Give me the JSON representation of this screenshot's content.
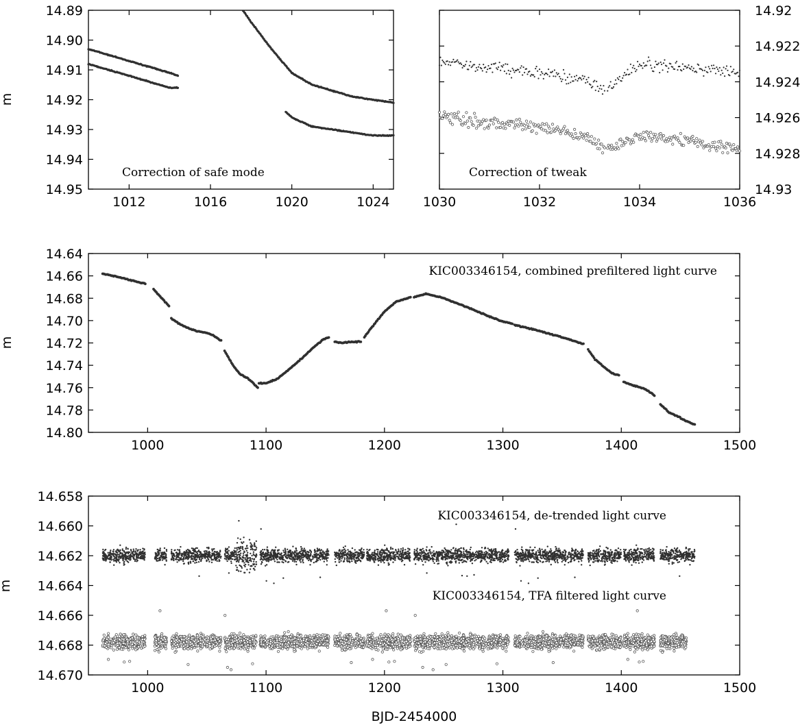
{
  "figure": {
    "xlabel": "BJD-2454000",
    "colors": {
      "points": "#303030",
      "open_points": "#555555",
      "axes": "#000000",
      "background": "#ffffff"
    }
  },
  "chart_data": [
    {
      "id": "safe-mode",
      "type": "scatter",
      "annotation": "Correction of safe mode",
      "ylabel": "m",
      "xlim": [
        1010,
        1025
      ],
      "ylim": [
        14.89,
        14.95
      ],
      "y_inverted": true,
      "xticks": [
        "1012",
        "1016",
        "1020",
        "1024"
      ],
      "xtick_values": [
        1012,
        1016,
        1020,
        1024
      ],
      "yticks": [
        "14.89",
        "14.90",
        "14.91",
        "14.92",
        "14.93",
        "14.94",
        "14.95"
      ],
      "ytick_values": [
        14.89,
        14.9,
        14.91,
        14.92,
        14.93,
        14.94,
        14.95
      ],
      "series": [
        {
          "x": [
            1010,
            1011,
            1012,
            1013,
            1014,
            1014.4
          ],
          "y": [
            14.903,
            14.905,
            14.907,
            14.909,
            14.911,
            14.912
          ]
        },
        {
          "x": [
            1010,
            1011,
            1012,
            1013,
            1014,
            1014.4
          ],
          "y": [
            14.908,
            14.91,
            14.912,
            14.914,
            14.916,
            14.916
          ]
        },
        {
          "x": [
            1017.5,
            1018,
            1019,
            1020,
            1021,
            1022,
            1023,
            1024,
            1025
          ],
          "y": [
            14.889,
            14.894,
            14.903,
            14.911,
            14.915,
            14.917,
            14.919,
            14.92,
            14.921
          ]
        },
        {
          "x": [
            1019.7,
            1020,
            1021,
            1022,
            1023,
            1024,
            1025
          ],
          "y": [
            14.924,
            14.926,
            14.929,
            14.93,
            14.931,
            14.932,
            14.932
          ]
        }
      ]
    },
    {
      "id": "tweak",
      "type": "scatter",
      "annotation": "Correction of tweak",
      "xlim": [
        1030,
        1036
      ],
      "ylim": [
        14.92,
        14.93
      ],
      "y_inverted": true,
      "y_axis_side": "right",
      "xticks": [
        "1030",
        "1032",
        "1034",
        "1036"
      ],
      "xtick_values": [
        1030,
        1032,
        1034,
        1036
      ],
      "yticks": [
        "14.92",
        "14.922",
        "14.924",
        "14.926",
        "14.928",
        "14.93"
      ],
      "ytick_values": [
        14.92,
        14.922,
        14.924,
        14.926,
        14.928,
        14.93
      ],
      "series": [
        {
          "marker": "dot",
          "x": [
            1030,
            1031,
            1032,
            1033,
            1033.3,
            1034,
            1035,
            1036
          ],
          "y": [
            14.9228,
            14.9232,
            14.9235,
            14.924,
            14.9245,
            14.923,
            14.9232,
            14.9235
          ]
        },
        {
          "marker": "open-circle",
          "x": [
            1030,
            1031,
            1032,
            1033,
            1033.3,
            1034,
            1035,
            1036
          ],
          "y": [
            14.926,
            14.9263,
            14.9265,
            14.9272,
            14.9278,
            14.927,
            14.9273,
            14.9278
          ]
        }
      ]
    },
    {
      "id": "combined",
      "type": "scatter",
      "annotation": "KIC003346154, combined prefiltered light curve",
      "ylabel": "m",
      "xlim": [
        950,
        1500
      ],
      "ylim": [
        14.64,
        14.8
      ],
      "y_inverted": true,
      "xticks": [
        "1000",
        "1100",
        "1200",
        "1300",
        "1400",
        "1500"
      ],
      "xtick_values": [
        1000,
        1100,
        1200,
        1300,
        1400,
        1500
      ],
      "yticks": [
        "14.64",
        "14.66",
        "14.68",
        "14.70",
        "14.72",
        "14.74",
        "14.76",
        "14.78",
        "14.80"
      ],
      "ytick_values": [
        14.64,
        14.66,
        14.68,
        14.7,
        14.72,
        14.74,
        14.76,
        14.78,
        14.8
      ],
      "segments": [
        {
          "x": [
            962,
            975,
            990,
            998
          ],
          "y": [
            14.658,
            14.661,
            14.665,
            14.667
          ]
        },
        {
          "x": [
            1005,
            1012,
            1018
          ],
          "y": [
            14.672,
            14.68,
            14.687
          ]
        },
        {
          "x": [
            1020,
            1030,
            1040,
            1050,
            1055,
            1062
          ],
          "y": [
            14.698,
            14.705,
            14.709,
            14.711,
            14.713,
            14.718
          ]
        },
        {
          "x": [
            1065,
            1072,
            1078,
            1085,
            1090,
            1093
          ],
          "y": [
            14.727,
            14.74,
            14.748,
            14.752,
            14.757,
            14.76
          ]
        },
        {
          "x": [
            1094,
            1100,
            1110,
            1120,
            1130,
            1140,
            1148,
            1153
          ],
          "y": [
            14.756,
            14.756,
            14.752,
            14.743,
            14.734,
            14.724,
            14.717,
            14.715
          ]
        },
        {
          "x": [
            1158,
            1165,
            1172,
            1180
          ],
          "y": [
            14.719,
            14.72,
            14.719,
            14.719
          ]
        },
        {
          "x": [
            1183,
            1190,
            1200,
            1210,
            1222
          ],
          "y": [
            14.715,
            14.705,
            14.692,
            14.683,
            14.679
          ]
        },
        {
          "x": [
            1225,
            1235,
            1250,
            1270,
            1290,
            1300,
            1308
          ],
          "y": [
            14.679,
            14.676,
            14.68,
            14.688,
            14.697,
            14.701,
            14.703
          ]
        },
        {
          "x": [
            1310,
            1330,
            1350,
            1368
          ],
          "y": [
            14.704,
            14.709,
            14.715,
            14.721
          ]
        },
        {
          "x": [
            1372,
            1378,
            1385,
            1392,
            1398
          ],
          "y": [
            14.726,
            14.735,
            14.741,
            14.747,
            14.749
          ]
        },
        {
          "x": [
            1402,
            1410,
            1420,
            1428
          ],
          "y": [
            14.755,
            14.758,
            14.761,
            14.767
          ]
        },
        {
          "x": [
            1433,
            1440,
            1448,
            1455,
            1462
          ],
          "y": [
            14.775,
            14.782,
            14.786,
            14.79,
            14.793
          ]
        }
      ]
    },
    {
      "id": "residuals",
      "type": "scatter",
      "ylabel": "m",
      "xlim": [
        950,
        1500
      ],
      "ylim": [
        14.658,
        14.67
      ],
      "y_inverted": true,
      "xticks": [
        "1000",
        "1100",
        "1200",
        "1300",
        "1400",
        "1500"
      ],
      "xtick_values": [
        1000,
        1100,
        1200,
        1300,
        1400,
        1500
      ],
      "yticks": [
        "14.658",
        "14.660",
        "14.662",
        "14.664",
        "14.666",
        "14.668",
        "14.670"
      ],
      "ytick_values": [
        14.658,
        14.66,
        14.662,
        14.664,
        14.666,
        14.668,
        14.67
      ],
      "series": [
        {
          "name": "KIC003346154, de-trended light curve",
          "marker": "dot",
          "center": 14.662,
          "segments": [
            [
              962,
              998
            ],
            [
              1006,
              1016
            ],
            [
              1020,
              1062
            ],
            [
              1065,
              1092
            ],
            [
              1095,
              1153
            ],
            [
              1158,
              1183
            ],
            [
              1185,
              1222
            ],
            [
              1225,
              1305
            ],
            [
              1310,
              1368
            ],
            [
              1372,
              1400
            ],
            [
              1402,
              1428
            ],
            [
              1433,
              1462
            ]
          ],
          "band_halfwidth": 0.0008
        },
        {
          "name": "KIC003346154, TFA filtered light curve",
          "marker": "open-circle",
          "center": 14.6678,
          "segments": [
            [
              962,
              998
            ],
            [
              1006,
              1016
            ],
            [
              1020,
              1062
            ],
            [
              1065,
              1092
            ],
            [
              1095,
              1153
            ],
            [
              1158,
              1183
            ],
            [
              1185,
              1222
            ],
            [
              1225,
              1305
            ],
            [
              1310,
              1368
            ],
            [
              1372,
              1400
            ],
            [
              1402,
              1428
            ],
            [
              1433,
              1455
            ]
          ],
          "band_halfwidth": 0.0008
        }
      ]
    }
  ]
}
